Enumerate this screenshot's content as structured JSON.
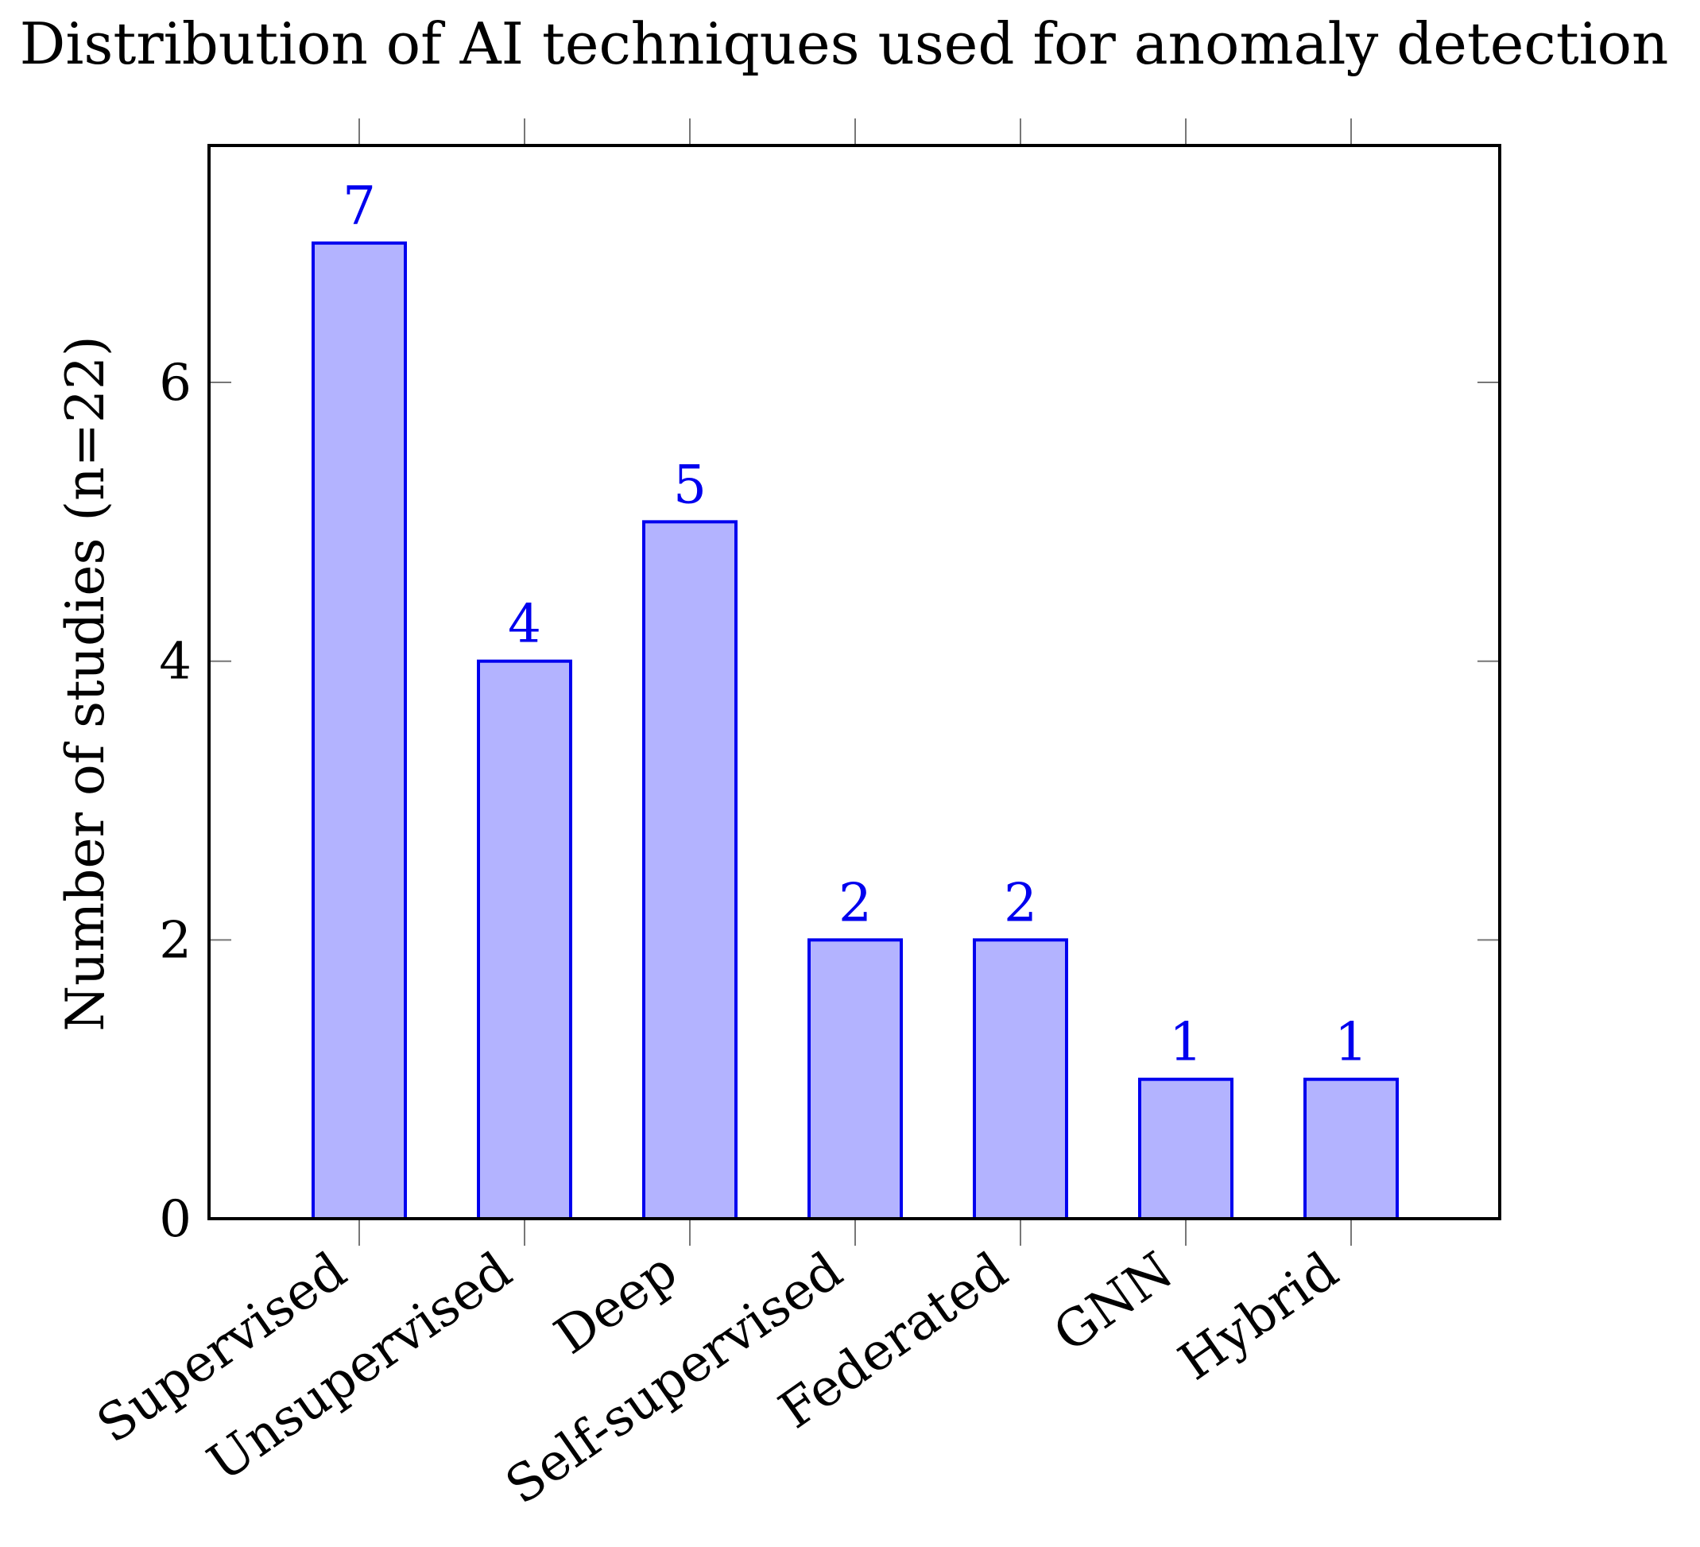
{
  "chart_data": {
    "type": "bar",
    "title": "Distribution of AI techniques used for anomaly detection",
    "xlabel": "",
    "ylabel": "Number of studies (n=22)",
    "categories": [
      "Supervised",
      "Unsupervised",
      "Deep",
      "Self-supervised",
      "Federated",
      "GNN",
      "Hybrid"
    ],
    "values": [
      7,
      4,
      5,
      2,
      2,
      1,
      1
    ],
    "ylim": [
      0,
      7.7
    ],
    "yticks": [
      0,
      2,
      4,
      6
    ],
    "grid": false,
    "legend": "none",
    "data_labels": true,
    "bar_fill": "#b3b3ff",
    "bar_stroke": "#0000ee",
    "label_color": "#0000ee"
  }
}
